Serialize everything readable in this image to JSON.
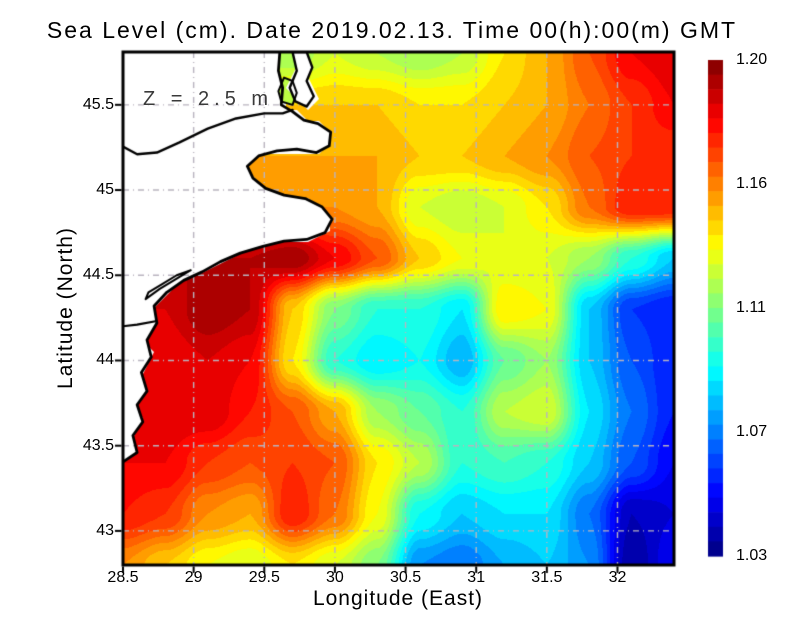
{
  "styles": {
    "background": "#ffffff",
    "land_color": "#ffffff",
    "coast_color": "#000000",
    "grid_color": "#b9b4bf",
    "text_color": "#000000",
    "annotation_color": "#3a3a3a"
  },
  "chart_data": {
    "type": "heatmap",
    "title": "Sea Level (cm). Date 2019.02.13. Time 00(h):00(m) GMT",
    "annotation": "Z = 2.5 m",
    "xlabel": "Longitude (East)",
    "ylabel": "Latitude (North)",
    "xlim": [
      28.5,
      32.4
    ],
    "ylim": [
      42.8,
      45.81
    ],
    "grid_on": true,
    "legend_position": "right-colorbar",
    "colormap": "jet",
    "xticks": {
      "values": [
        28.5,
        29,
        29.5,
        30,
        30.5,
        31,
        31.5,
        32
      ],
      "labels": [
        "28.5",
        "29",
        "29.5",
        "30",
        "30.5",
        "31",
        "31.5",
        "32"
      ]
    },
    "yticks": {
      "values": [
        45.5,
        45,
        44.5,
        44,
        43.5,
        43
      ],
      "labels": [
        "45.5",
        "45",
        "44.5",
        "44",
        "43.5",
        "43"
      ]
    },
    "colorbar": {
      "min": 1.03,
      "max": 1.2,
      "steps": 34,
      "labels": [
        "1.20",
        "1.16",
        "1.11",
        "1.07",
        "1.03"
      ]
    },
    "x": [
      28.5,
      28.8,
      29.1,
      29.4,
      29.7,
      30.0,
      30.3,
      30.6,
      30.9,
      31.2,
      31.5,
      31.8,
      32.1,
      32.4
    ],
    "y": [
      45.8,
      45.5,
      45.2,
      44.9,
      44.6,
      44.3,
      44.0,
      43.7,
      43.4,
      43.1,
      42.8
    ],
    "values": [
      [
        null,
        null,
        null,
        null,
        1.12,
        1.13,
        1.125,
        1.12,
        1.125,
        1.14,
        1.15,
        1.165,
        1.18,
        1.185
      ],
      [
        null,
        null,
        null,
        null,
        null,
        1.145,
        1.145,
        1.14,
        1.14,
        1.145,
        1.15,
        1.16,
        1.17,
        1.18
      ],
      [
        null,
        null,
        null,
        null,
        null,
        1.15,
        1.15,
        1.145,
        1.145,
        1.15,
        1.155,
        1.165,
        1.17,
        1.17
      ],
      [
        null,
        null,
        null,
        null,
        1.155,
        1.155,
        1.15,
        1.13,
        1.125,
        1.13,
        1.14,
        1.16,
        1.175,
        1.175
      ],
      [
        null,
        null,
        null,
        1.19,
        1.195,
        1.18,
        1.165,
        1.145,
        1.135,
        1.13,
        1.13,
        1.12,
        1.1,
        1.085
      ],
      [
        null,
        1.185,
        1.195,
        1.19,
        1.145,
        1.115,
        1.1,
        1.1,
        1.09,
        1.14,
        1.135,
        1.085,
        1.06,
        1.055
      ],
      [
        null,
        1.18,
        1.185,
        1.18,
        1.14,
        1.1,
        1.09,
        1.095,
        1.08,
        1.11,
        1.12,
        1.085,
        1.065,
        1.055
      ],
      [
        null,
        1.185,
        1.185,
        1.175,
        1.165,
        1.15,
        1.12,
        1.11,
        1.1,
        1.125,
        1.13,
        1.09,
        1.07,
        1.055
      ],
      [
        1.18,
        1.18,
        1.17,
        1.165,
        1.17,
        1.165,
        1.14,
        1.125,
        1.1,
        1.105,
        1.1,
        1.085,
        1.065,
        1.05
      ],
      [
        1.175,
        1.17,
        1.155,
        1.15,
        1.175,
        1.16,
        1.135,
        1.095,
        1.085,
        1.09,
        1.09,
        1.07,
        1.04,
        1.045
      ],
      [
        1.155,
        1.145,
        1.135,
        1.13,
        1.14,
        1.13,
        1.115,
        1.075,
        1.07,
        1.08,
        1.085,
        1.075,
        1.035,
        1.05
      ]
    ],
    "land": {
      "coast": [
        [
          28.49,
          43.4
        ],
        [
          28.6,
          43.46
        ],
        [
          28.57,
          43.56
        ],
        [
          28.64,
          43.64
        ],
        [
          28.6,
          43.74
        ],
        [
          28.67,
          43.82
        ],
        [
          28.63,
          43.93
        ],
        [
          28.7,
          44.02
        ],
        [
          28.67,
          44.12
        ],
        [
          28.74,
          44.22
        ],
        [
          28.72,
          44.32
        ],
        [
          28.81,
          44.4
        ],
        [
          28.93,
          44.47
        ],
        [
          29.06,
          44.52
        ],
        [
          29.19,
          44.58
        ],
        [
          29.33,
          44.63
        ],
        [
          29.49,
          44.67
        ],
        [
          29.64,
          44.7
        ],
        [
          29.8,
          44.71
        ],
        [
          29.93,
          44.75
        ],
        [
          29.98,
          44.83
        ],
        [
          29.91,
          44.9
        ],
        [
          29.79,
          44.95
        ],
        [
          29.64,
          44.97
        ],
        [
          29.51,
          45.01
        ],
        [
          29.42,
          45.07
        ],
        [
          29.38,
          45.14
        ],
        [
          29.46,
          45.2
        ],
        [
          29.59,
          45.23
        ],
        [
          29.73,
          45.24
        ],
        [
          29.87,
          45.22
        ],
        [
          29.96,
          45.26
        ],
        [
          29.97,
          45.34
        ],
        [
          29.88,
          45.39
        ],
        [
          29.78,
          45.41
        ],
        [
          29.7,
          45.46
        ],
        [
          29.62,
          45.5
        ],
        [
          29.63,
          45.6
        ],
        [
          29.6,
          45.7
        ],
        [
          29.61,
          45.81
        ]
      ],
      "peninsula": [
        [
          29.72,
          45.52
        ],
        [
          29.8,
          45.49
        ],
        [
          29.85,
          45.55
        ],
        [
          29.8,
          45.64
        ],
        [
          29.84,
          45.72
        ],
        [
          29.8,
          45.81
        ],
        [
          29.7,
          45.81
        ],
        [
          29.73,
          45.7
        ],
        [
          29.68,
          45.6
        ]
      ],
      "lagoon": [
        [
          29.62,
          45.52
        ],
        [
          29.7,
          45.5
        ],
        [
          29.73,
          45.57
        ],
        [
          29.7,
          45.64
        ],
        [
          29.64,
          45.66
        ],
        [
          29.6,
          45.58
        ]
      ],
      "lagoon_value": 1.125,
      "danube": [
        [
          28.49,
          45.26
        ],
        [
          28.6,
          45.21
        ],
        [
          28.74,
          45.22
        ],
        [
          28.9,
          45.28
        ],
        [
          29.1,
          45.36
        ],
        [
          29.3,
          45.42
        ],
        [
          29.5,
          45.45
        ],
        [
          29.63,
          45.45
        ],
        [
          29.7,
          45.47
        ]
      ],
      "river": [
        [
          28.49,
          44.2
        ],
        [
          28.6,
          44.21
        ],
        [
          28.73,
          44.23
        ]
      ],
      "lake": [
        [
          28.66,
          44.36
        ],
        [
          28.76,
          44.42
        ],
        [
          28.88,
          44.48
        ],
        [
          28.98,
          44.53
        ],
        [
          28.88,
          44.5
        ],
        [
          28.78,
          44.45
        ],
        [
          28.68,
          44.4
        ]
      ]
    }
  }
}
